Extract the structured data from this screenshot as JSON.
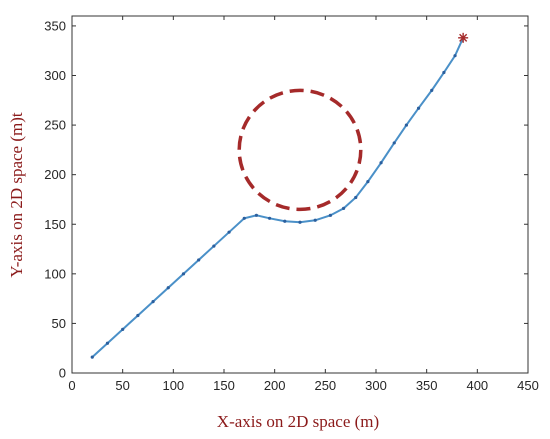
{
  "chart_data": {
    "type": "line",
    "title": "",
    "xlabel": "X-axis on 2D space (m)",
    "ylabel": "Y-axis on 2D space (m)t",
    "xlim": [
      0,
      450
    ],
    "ylim": [
      0,
      360
    ],
    "xticks": [
      0,
      50,
      100,
      150,
      200,
      250,
      300,
      350,
      400,
      450
    ],
    "yticks": [
      0,
      50,
      100,
      150,
      200,
      250,
      300,
      350
    ],
    "grid": false,
    "legend": "none",
    "series": [
      {
        "color": "#4a90c8",
        "marker_color": "#2b5f9e",
        "x": [
          20,
          35,
          50,
          65,
          80,
          95,
          110,
          125,
          140,
          155,
          170,
          182,
          195,
          210,
          225,
          240,
          255,
          268,
          280,
          292,
          305,
          318,
          330,
          342,
          355,
          367,
          378,
          386
        ],
        "y": [
          16,
          30,
          44,
          58,
          72,
          86,
          100,
          114,
          128,
          142,
          156,
          159,
          156,
          153,
          152,
          154,
          159,
          166,
          177,
          193,
          212,
          232,
          250,
          267,
          285,
          303,
          320,
          338
        ]
      }
    ],
    "annotations": [
      {
        "type": "circle",
        "style": "dashed",
        "color": "#a52a2a",
        "cx": 225,
        "cy": 225,
        "r": 60
      },
      {
        "type": "marker",
        "shape": "star",
        "color": "#a52a2a",
        "x": 386,
        "y": 338
      }
    ]
  }
}
